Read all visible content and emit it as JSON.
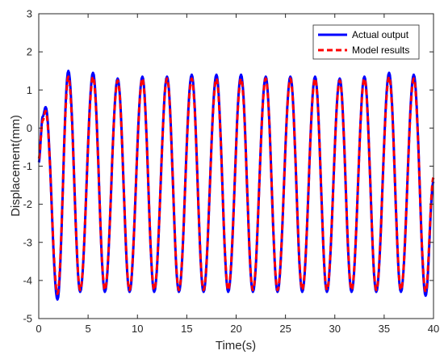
{
  "chart_data": {
    "type": "line",
    "xlabel": "Time(s)",
    "ylabel": "Displacement(mm)",
    "xlim": [
      0,
      40
    ],
    "ylim": [
      -5,
      3
    ],
    "x_ticks": [
      0,
      5,
      10,
      15,
      20,
      25,
      30,
      35,
      40
    ],
    "y_ticks": [
      -5,
      -4,
      -3,
      -2,
      -1,
      0,
      1,
      2,
      3
    ],
    "grid": false,
    "legend_position": "top-right",
    "period_s": 2.5,
    "series": [
      {
        "name": "Actual output",
        "color": "#0000FF",
        "style": "solid",
        "x": [
          0,
          0.4,
          0.7,
          1.9,
          3.0,
          4.2,
          5.5,
          6.7,
          8.0,
          9.2,
          10.5,
          11.7,
          13.0,
          14.2,
          15.5,
          16.7,
          18.0,
          19.2,
          20.5,
          21.7,
          23.0,
          24.2,
          25.5,
          26.7,
          28.0,
          29.2,
          30.5,
          31.7,
          33.0,
          34.2,
          35.5,
          36.7,
          38.0,
          39.2,
          40.0
        ],
        "y": [
          -0.9,
          0.3,
          0.55,
          -4.5,
          1.5,
          -4.3,
          1.45,
          -4.3,
          1.3,
          -4.3,
          1.35,
          -4.3,
          1.35,
          -4.3,
          1.4,
          -4.3,
          1.4,
          -4.3,
          1.4,
          -4.3,
          1.35,
          -4.3,
          1.35,
          -4.3,
          1.35,
          -4.3,
          1.3,
          -4.3,
          1.35,
          -4.3,
          1.45,
          -4.3,
          1.4,
          -4.4,
          -1.4
        ]
      },
      {
        "name": "Model results",
        "color": "#FF0000",
        "style": "dashed",
        "x": [
          0,
          0.4,
          0.7,
          1.9,
          3.0,
          4.2,
          5.5,
          6.7,
          8.0,
          9.2,
          10.5,
          11.7,
          13.0,
          14.2,
          15.5,
          16.7,
          18.0,
          19.2,
          20.5,
          21.7,
          23.0,
          24.2,
          25.5,
          26.7,
          28.0,
          29.2,
          30.5,
          31.7,
          33.0,
          34.2,
          35.5,
          36.7,
          38.0,
          39.2,
          40.0
        ],
        "y": [
          -0.8,
          0.2,
          0.45,
          -4.35,
          1.35,
          -4.25,
          1.35,
          -4.25,
          1.25,
          -4.25,
          1.3,
          -4.25,
          1.3,
          -4.25,
          1.3,
          -4.25,
          1.3,
          -4.25,
          1.3,
          -4.25,
          1.3,
          -4.25,
          1.3,
          -4.25,
          1.3,
          -4.25,
          1.25,
          -4.25,
          1.3,
          -4.25,
          1.35,
          -4.25,
          1.3,
          -4.3,
          -1.3
        ]
      }
    ]
  }
}
